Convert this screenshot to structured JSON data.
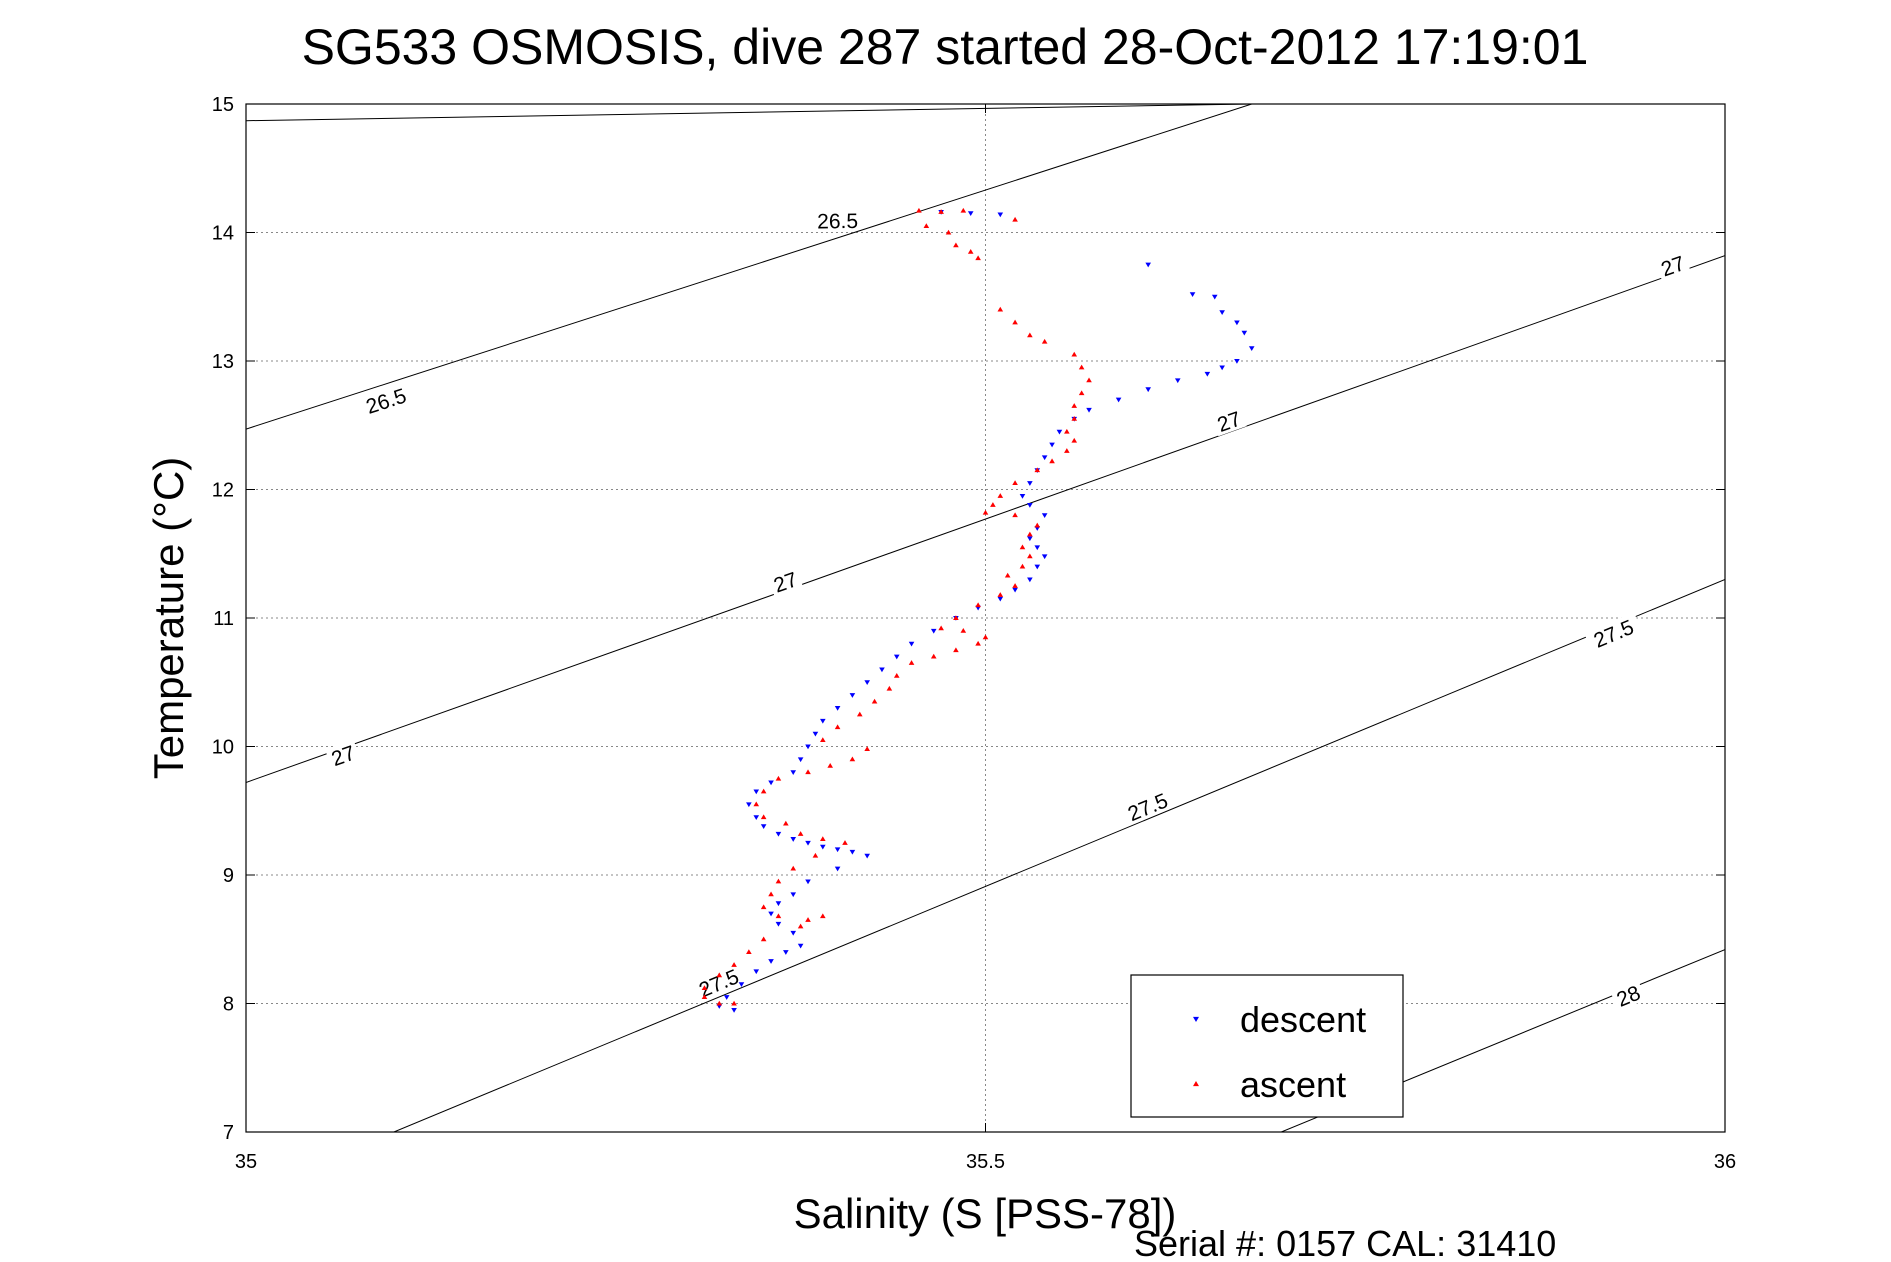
{
  "chart_data": {
    "type": "scatter",
    "title": "SG533 OSMOSIS, dive 287 started 28-Oct-2012 17:19:01",
    "xlabel": "Salinity (S [PSS-78])",
    "ylabel": "Temperature (°C)",
    "xlim": [
      35,
      36
    ],
    "ylim": [
      7,
      15
    ],
    "xticks": [
      35,
      35.5,
      36
    ],
    "xtick_labels": [
      "35",
      "35.5",
      "36"
    ],
    "yticks": [
      7,
      8,
      9,
      10,
      11,
      12,
      13,
      14,
      15
    ],
    "ytick_labels": [
      "7",
      "8",
      "9",
      "10",
      "11",
      "12",
      "13",
      "14",
      "15"
    ],
    "grid": true,
    "legend_position": "bottom-right",
    "note": "Serial #: 0157  CAL: 31410",
    "density_contours": [
      {
        "label": "26.5",
        "points": [
          [
            35.0,
            14.87
          ],
          [
            35.68,
            15.0
          ]
        ],
        "label_at": [
          35.4,
          14.08
        ]
      },
      {
        "label": "26.5",
        "points": [
          [
            35.0,
            12.47
          ],
          [
            35.68,
            15.0
          ]
        ],
        "label_at": [
          35.095,
          12.68
        ]
      },
      {
        "label": "27",
        "points": [
          [
            35.0,
            9.72
          ],
          [
            36.0,
            13.82
          ]
        ],
        "label_at": [
          35.066,
          9.92
        ]
      },
      {
        "label": "27",
        "points": [
          [
            35.0,
            9.72
          ],
          [
            36.0,
            13.82
          ]
        ],
        "label_at": [
          35.365,
          11.27
        ]
      },
      {
        "label": "27",
        "points": [
          [
            35.0,
            9.72
          ],
          [
            36.0,
            13.82
          ]
        ],
        "label_at": [
          35.665,
          12.52
        ]
      },
      {
        "label": "27",
        "points": [
          [
            35.0,
            9.72
          ],
          [
            36.0,
            13.82
          ]
        ],
        "label_at": [
          35.965,
          13.73
        ]
      },
      {
        "label": "27.5",
        "points": [
          [
            35.1,
            7.0
          ],
          [
            36.0,
            11.3
          ]
        ],
        "label_at": [
          35.32,
          8.15
        ]
      },
      {
        "label": "27.5",
        "points": [
          [
            35.1,
            7.0
          ],
          [
            36.0,
            11.3
          ]
        ],
        "label_at": [
          35.61,
          9.52
        ]
      },
      {
        "label": "27.5",
        "points": [
          [
            35.1,
            7.0
          ],
          [
            36.0,
            11.3
          ]
        ],
        "label_at": [
          35.925,
          10.87
        ]
      },
      {
        "label": "28",
        "points": [
          [
            35.7,
            7.0
          ],
          [
            36.0,
            8.42
          ]
        ],
        "label_at": [
          35.935,
          8.05
        ]
      }
    ],
    "series": [
      {
        "name": "descent",
        "color": "#0000ff",
        "marker": "triangle-down",
        "points": [
          [
            35.47,
            14.16
          ],
          [
            35.49,
            14.15
          ],
          [
            35.51,
            14.14
          ],
          [
            35.61,
            13.75
          ],
          [
            35.64,
            13.52
          ],
          [
            35.655,
            13.5
          ],
          [
            35.66,
            13.38
          ],
          [
            35.67,
            13.3
          ],
          [
            35.675,
            13.22
          ],
          [
            35.68,
            13.1
          ],
          [
            35.67,
            13.0
          ],
          [
            35.66,
            12.95
          ],
          [
            35.65,
            12.9
          ],
          [
            35.63,
            12.85
          ],
          [
            35.61,
            12.78
          ],
          [
            35.59,
            12.7
          ],
          [
            35.57,
            12.62
          ],
          [
            35.56,
            12.55
          ],
          [
            35.55,
            12.45
          ],
          [
            35.545,
            12.35
          ],
          [
            35.54,
            12.25
          ],
          [
            35.535,
            12.15
          ],
          [
            35.53,
            12.05
          ],
          [
            35.525,
            11.95
          ],
          [
            35.53,
            11.88
          ],
          [
            35.54,
            11.8
          ],
          [
            35.535,
            11.7
          ],
          [
            35.53,
            11.62
          ],
          [
            35.535,
            11.55
          ],
          [
            35.54,
            11.48
          ],
          [
            35.535,
            11.4
          ],
          [
            35.53,
            11.3
          ],
          [
            35.52,
            11.22
          ],
          [
            35.51,
            11.15
          ],
          [
            35.495,
            11.08
          ],
          [
            35.48,
            11.0
          ],
          [
            35.465,
            10.9
          ],
          [
            35.45,
            10.8
          ],
          [
            35.44,
            10.7
          ],
          [
            35.43,
            10.6
          ],
          [
            35.42,
            10.5
          ],
          [
            35.41,
            10.4
          ],
          [
            35.4,
            10.3
          ],
          [
            35.39,
            10.2
          ],
          [
            35.385,
            10.1
          ],
          [
            35.38,
            10.0
          ],
          [
            35.375,
            9.9
          ],
          [
            35.37,
            9.8
          ],
          [
            35.355,
            9.72
          ],
          [
            35.345,
            9.65
          ],
          [
            35.34,
            9.55
          ],
          [
            35.345,
            9.45
          ],
          [
            35.35,
            9.38
          ],
          [
            35.36,
            9.32
          ],
          [
            35.37,
            9.28
          ],
          [
            35.38,
            9.25
          ],
          [
            35.39,
            9.22
          ],
          [
            35.4,
            9.2
          ],
          [
            35.41,
            9.18
          ],
          [
            35.42,
            9.15
          ],
          [
            35.4,
            9.05
          ],
          [
            35.38,
            8.95
          ],
          [
            35.37,
            8.85
          ],
          [
            35.36,
            8.78
          ],
          [
            35.355,
            8.7
          ],
          [
            35.36,
            8.62
          ],
          [
            35.37,
            8.55
          ],
          [
            35.375,
            8.45
          ],
          [
            35.365,
            8.4
          ],
          [
            35.355,
            8.33
          ],
          [
            35.345,
            8.25
          ],
          [
            35.335,
            8.15
          ],
          [
            35.325,
            8.05
          ],
          [
            35.32,
            7.98
          ],
          [
            35.33,
            7.95
          ]
        ]
      },
      {
        "name": "ascent",
        "color": "#ff0000",
        "marker": "triangle-up",
        "points": [
          [
            35.455,
            14.17
          ],
          [
            35.47,
            14.16
          ],
          [
            35.485,
            14.17
          ],
          [
            35.52,
            14.1
          ],
          [
            35.46,
            14.05
          ],
          [
            35.475,
            14.0
          ],
          [
            35.48,
            13.9
          ],
          [
            35.49,
            13.85
          ],
          [
            35.495,
            13.8
          ],
          [
            35.51,
            13.4
          ],
          [
            35.52,
            13.3
          ],
          [
            35.53,
            13.2
          ],
          [
            35.54,
            13.15
          ],
          [
            35.56,
            13.05
          ],
          [
            35.565,
            12.95
          ],
          [
            35.57,
            12.85
          ],
          [
            35.565,
            12.75
          ],
          [
            35.56,
            12.65
          ],
          [
            35.56,
            12.55
          ],
          [
            35.555,
            12.45
          ],
          [
            35.56,
            12.38
          ],
          [
            35.555,
            12.3
          ],
          [
            35.545,
            12.22
          ],
          [
            35.535,
            12.15
          ],
          [
            35.52,
            12.05
          ],
          [
            35.51,
            11.95
          ],
          [
            35.505,
            11.88
          ],
          [
            35.5,
            11.82
          ],
          [
            35.52,
            11.8
          ],
          [
            35.535,
            11.72
          ],
          [
            35.53,
            11.65
          ],
          [
            35.525,
            11.55
          ],
          [
            35.53,
            11.48
          ],
          [
            35.525,
            11.4
          ],
          [
            35.515,
            11.33
          ],
          [
            35.52,
            11.25
          ],
          [
            35.51,
            11.18
          ],
          [
            35.495,
            11.1
          ],
          [
            35.48,
            11.0
          ],
          [
            35.47,
            10.92
          ],
          [
            35.485,
            10.9
          ],
          [
            35.5,
            10.85
          ],
          [
            35.495,
            10.8
          ],
          [
            35.48,
            10.75
          ],
          [
            35.465,
            10.7
          ],
          [
            35.45,
            10.65
          ],
          [
            35.44,
            10.55
          ],
          [
            35.435,
            10.45
          ],
          [
            35.425,
            10.35
          ],
          [
            35.415,
            10.25
          ],
          [
            35.4,
            10.15
          ],
          [
            35.39,
            10.05
          ],
          [
            35.42,
            9.98
          ],
          [
            35.41,
            9.9
          ],
          [
            35.395,
            9.85
          ],
          [
            35.38,
            9.8
          ],
          [
            35.36,
            9.75
          ],
          [
            35.35,
            9.65
          ],
          [
            35.345,
            9.55
          ],
          [
            35.35,
            9.45
          ],
          [
            35.365,
            9.4
          ],
          [
            35.375,
            9.32
          ],
          [
            35.39,
            9.28
          ],
          [
            35.405,
            9.25
          ],
          [
            35.385,
            9.15
          ],
          [
            35.37,
            9.05
          ],
          [
            35.36,
            8.95
          ],
          [
            35.355,
            8.85
          ],
          [
            35.35,
            8.75
          ],
          [
            35.36,
            8.68
          ],
          [
            35.38,
            8.65
          ],
          [
            35.39,
            8.68
          ],
          [
            35.375,
            8.6
          ],
          [
            35.35,
            8.5
          ],
          [
            35.34,
            8.4
          ],
          [
            35.33,
            8.3
          ],
          [
            35.32,
            8.22
          ],
          [
            35.31,
            8.12
          ],
          [
            35.31,
            8.05
          ],
          [
            35.32,
            8.0
          ],
          [
            35.33,
            8.0
          ]
        ]
      }
    ]
  }
}
